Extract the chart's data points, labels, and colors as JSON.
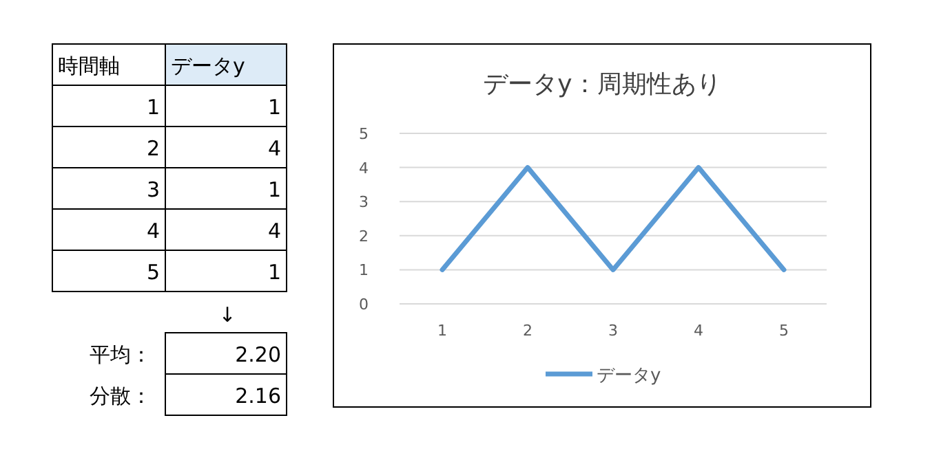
{
  "chart_data": {
    "type": "line",
    "title": "データy：周期性あり",
    "categories": [
      "1",
      "2",
      "3",
      "4",
      "5"
    ],
    "series": [
      {
        "name": "データy",
        "color": "#5b9bd5",
        "values": [
          1,
          4,
          1,
          4,
          1
        ]
      }
    ],
    "ylim": [
      0,
      5
    ],
    "yticks": [
      0,
      1,
      2,
      3,
      4,
      5
    ],
    "grid": "y",
    "legend": "bottom",
    "annotations": [
      "時間軸",
      "↓",
      "平均：",
      "2.20",
      "分散：",
      "2.16"
    ]
  }
}
